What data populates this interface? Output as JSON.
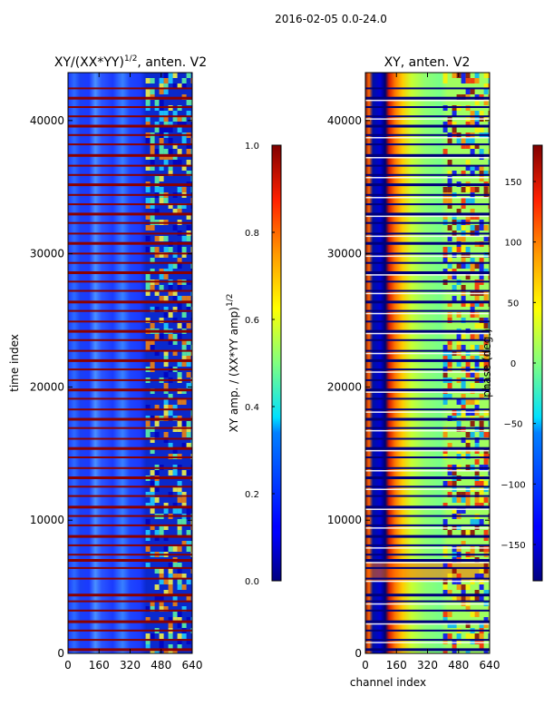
{
  "figure_title": "2016-02-05 0.0-24.0",
  "chart_data": [
    {
      "type": "heatmap",
      "title_text": "XY/(XX*YY)",
      "title_exponent": "1/2",
      "title_suffix": ", anten. V2",
      "xlabel": "",
      "ylabel": "time index",
      "xlim": [
        0,
        640
      ],
      "ylim": [
        0,
        43600
      ],
      "xticks": [
        0,
        160,
        320,
        480,
        640
      ],
      "yticks": [
        0,
        10000,
        20000,
        30000,
        40000
      ],
      "colormap": "jet",
      "colorbar": {
        "label_text": "XY amp. / (XX*YY amp)",
        "label_exponent": "1/2",
        "range": [
          0.0,
          1.0
        ],
        "ticks": [
          "0.0",
          "0.2",
          "0.4",
          "0.6",
          "0.8",
          "1.0"
        ]
      },
      "gap_rows_time_index": [
        300,
        1000,
        1700,
        2400,
        3200,
        3900,
        4400,
        5600,
        6400,
        7000,
        7400,
        8100,
        8800,
        9600,
        10300,
        11000,
        11800,
        12500,
        13200,
        13900,
        14700,
        15400,
        16100,
        16900,
        17600,
        18300,
        19100,
        19800,
        20500,
        21300,
        22000,
        22700,
        23500,
        24200,
        24900,
        25700,
        26400,
        27200,
        27900,
        28600,
        29300,
        30000,
        30800,
        31500,
        32300,
        33000,
        33700,
        34400,
        35200,
        35900,
        36600,
        37400,
        38200,
        38900,
        39600,
        40300,
        41000,
        41700,
        42400
      ]
    },
    {
      "type": "heatmap",
      "title": "XY, anten. V2",
      "xlabel": "channel index",
      "ylabel": "",
      "xlim": [
        0,
        640
      ],
      "ylim": [
        0,
        43600
      ],
      "xticks": [
        0,
        160,
        320,
        480,
        640
      ],
      "yticks": [
        0,
        10000,
        20000,
        30000,
        40000
      ],
      "colormap": "jet",
      "colorbar": {
        "label": "phase (deg.)",
        "range": [
          -180,
          180
        ],
        "ticks": [
          "−150",
          "−100",
          "−50",
          "0",
          "50",
          "100",
          "150"
        ]
      },
      "gap_rows_time_index": [
        300,
        1000,
        1700,
        2400,
        3200,
        3900,
        4400,
        5600,
        6400,
        7000,
        7400,
        8100,
        8800,
        9600,
        10300,
        11000,
        11800,
        12500,
        13200,
        13900,
        14700,
        15400,
        16100,
        16900,
        17600,
        18300,
        19100,
        19800,
        20500,
        21300,
        22000,
        22700,
        23500,
        24200,
        24900,
        25700,
        26400,
        27200,
        27900,
        28600,
        29300,
        30000,
        30800,
        31500,
        32300,
        33000,
        33700,
        34400,
        35200,
        35900,
        36600,
        37400,
        38200,
        38900,
        39600,
        40300,
        41000,
        41700,
        42400
      ]
    }
  ]
}
